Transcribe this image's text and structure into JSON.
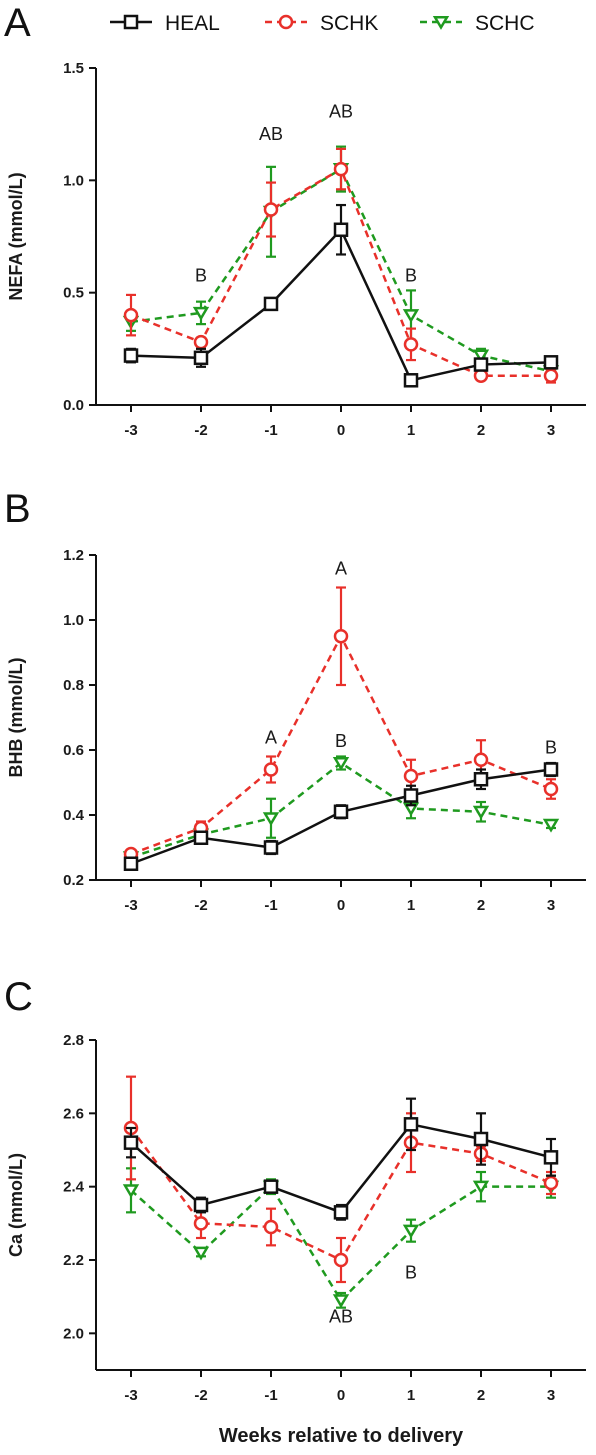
{
  "legend": [
    {
      "name": "HEAL",
      "color": "#111111",
      "marker": "square",
      "dash": "solid"
    },
    {
      "name": "SCHK",
      "color": "#e8302a",
      "marker": "circle",
      "dash": "dashed"
    },
    {
      "name": "SCHC",
      "color": "#1f9a1f",
      "marker": "triangle-down",
      "dash": "dashed"
    }
  ],
  "chart_data": [
    {
      "type": "line",
      "panel_label": "A",
      "ylabel": "NEFA (mmol/L)",
      "xlabel": "",
      "x": [
        -3,
        -2,
        -1,
        0,
        1,
        2,
        3
      ],
      "xticks": [
        "-3",
        "-2",
        "-1",
        "0",
        "1",
        "2",
        "3"
      ],
      "ylim": [
        0,
        1.5
      ],
      "yticks": [
        "0.0",
        "0.5",
        "1.0",
        "1.5"
      ],
      "ytick_values": [
        0,
        0.5,
        1.0,
        1.5
      ],
      "series": [
        {
          "name": "HEAL",
          "values": [
            0.22,
            0.21,
            0.45,
            0.78,
            0.11,
            0.18,
            0.19
          ],
          "errors": [
            0.03,
            0.04,
            0.02,
            0.11,
            0.01,
            0.02,
            0.02
          ]
        },
        {
          "name": "SCHK",
          "values": [
            0.4,
            0.28,
            0.87,
            1.05,
            0.27,
            0.13,
            0.13
          ],
          "errors": [
            0.09,
            0.02,
            0.12,
            0.09,
            0.07,
            0.01,
            0.03
          ]
        },
        {
          "name": "SCHC",
          "values": [
            0.37,
            0.41,
            0.86,
            1.05,
            0.4,
            0.22,
            0.15
          ],
          "errors": [
            0.04,
            0.05,
            0.2,
            0.1,
            0.11,
            0.03,
            0.02
          ]
        }
      ],
      "annotations": [
        {
          "text": "B",
          "x": -2,
          "y": 0.55
        },
        {
          "text": "AB",
          "x": -1,
          "y": 1.18
        },
        {
          "text": "AB",
          "x": 0,
          "y": 1.28
        },
        {
          "text": "B",
          "x": 1,
          "y": 0.55
        }
      ]
    },
    {
      "type": "line",
      "panel_label": "B",
      "ylabel": "BHB (mmol/L)",
      "xlabel": "",
      "x": [
        -3,
        -2,
        -1,
        0,
        1,
        2,
        3
      ],
      "xticks": [
        "-3",
        "-2",
        "-1",
        "0",
        "1",
        "2",
        "3"
      ],
      "ylim": [
        0.2,
        1.2
      ],
      "yticks": [
        "0.2",
        "0.4",
        "0.6",
        "0.8",
        "1.0",
        "1.2"
      ],
      "ytick_values": [
        0.2,
        0.4,
        0.6,
        0.8,
        1.0,
        1.2
      ],
      "series": [
        {
          "name": "HEAL",
          "values": [
            0.25,
            0.33,
            0.3,
            0.41,
            0.46,
            0.51,
            0.54
          ],
          "errors": [
            0.01,
            0.01,
            0.02,
            0.02,
            0.03,
            0.03,
            0.02
          ]
        },
        {
          "name": "SCHK",
          "values": [
            0.28,
            0.36,
            0.54,
            0.95,
            0.52,
            0.57,
            0.48
          ],
          "errors": [
            0.01,
            0.02,
            0.04,
            0.15,
            0.05,
            0.06,
            0.03
          ]
        },
        {
          "name": "SCHC",
          "values": [
            0.27,
            0.34,
            0.39,
            0.56,
            0.42,
            0.41,
            0.37
          ],
          "errors": [
            0.01,
            0.02,
            0.06,
            0.02,
            0.03,
            0.03,
            0.01
          ]
        }
      ],
      "annotations": [
        {
          "text": "A",
          "x": -1,
          "y": 0.62
        },
        {
          "text": "A",
          "x": 0,
          "y": 1.14
        },
        {
          "text": "B",
          "x": 0,
          "y": 0.61
        },
        {
          "text": "B",
          "x": 3,
          "y": 0.59
        }
      ]
    },
    {
      "type": "line",
      "panel_label": "C",
      "ylabel": "Ca (mmol/L)",
      "xlabel": "Weeks relative to delivery",
      "x": [
        -3,
        -2,
        -1,
        0,
        1,
        2,
        3
      ],
      "xticks": [
        "-3",
        "-2",
        "-1",
        "0",
        "1",
        "2",
        "3"
      ],
      "ylim": [
        1.9,
        2.8
      ],
      "yticks": [
        "2.0",
        "2.2",
        "2.4",
        "2.6",
        "2.8"
      ],
      "ytick_values": [
        2.0,
        2.2,
        2.4,
        2.6,
        2.8
      ],
      "series": [
        {
          "name": "HEAL",
          "values": [
            2.52,
            2.35,
            2.4,
            2.33,
            2.57,
            2.53,
            2.48
          ],
          "errors": [
            0.04,
            0.02,
            0.01,
            0.02,
            0.07,
            0.07,
            0.05
          ]
        },
        {
          "name": "SCHK",
          "values": [
            2.56,
            2.3,
            2.29,
            2.2,
            2.52,
            2.49,
            2.41
          ],
          "errors": [
            0.14,
            0.04,
            0.05,
            0.06,
            0.08,
            0.02,
            0.03
          ]
        },
        {
          "name": "SCHC",
          "values": [
            2.39,
            2.22,
            2.4,
            2.09,
            2.28,
            2.4,
            2.4
          ],
          "errors": [
            0.06,
            0.01,
            0.02,
            0.02,
            0.03,
            0.04,
            0.03
          ]
        }
      ],
      "annotations": [
        {
          "text": "AB",
          "x": 0,
          "y": 2.03
        },
        {
          "text": "B",
          "x": 1,
          "y": 2.15
        }
      ]
    }
  ]
}
